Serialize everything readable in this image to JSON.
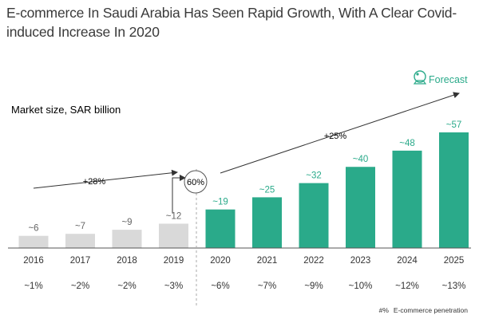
{
  "title": "E-commerce In Saudi Arabia Has Seen Rapid Growth, With A Clear Covid-induced Increase In 2020",
  "chart_data": {
    "type": "bar",
    "ylabel": "Market size, SAR billion",
    "categories": [
      "2016",
      "2017",
      "2018",
      "2019",
      "2020",
      "2021",
      "2022",
      "2023",
      "2024",
      "2025"
    ],
    "values": [
      6,
      7,
      9,
      12,
      19,
      25,
      32,
      40,
      48,
      57
    ],
    "value_labels": [
      "~6",
      "~7",
      "~9",
      "~12",
      "~19",
      "~25",
      "~32",
      "~40",
      "~48",
      "~57"
    ],
    "penetration": [
      "~1%",
      "~2%",
      "~2%",
      "~3%",
      "~6%",
      "~7%",
      "~9%",
      "~10%",
      "~12%",
      "~13%"
    ],
    "historical_color": "#d9d9d9",
    "forecast_color": "#2aaa8a",
    "accent_color": "#2aaa8a",
    "forecast_label": "Forecast",
    "growth_pre": "+28%",
    "growth_jump": "60%",
    "growth_post": "+25%"
  },
  "legend": {
    "symbol": "#%",
    "label": "E-commerce penetration"
  }
}
